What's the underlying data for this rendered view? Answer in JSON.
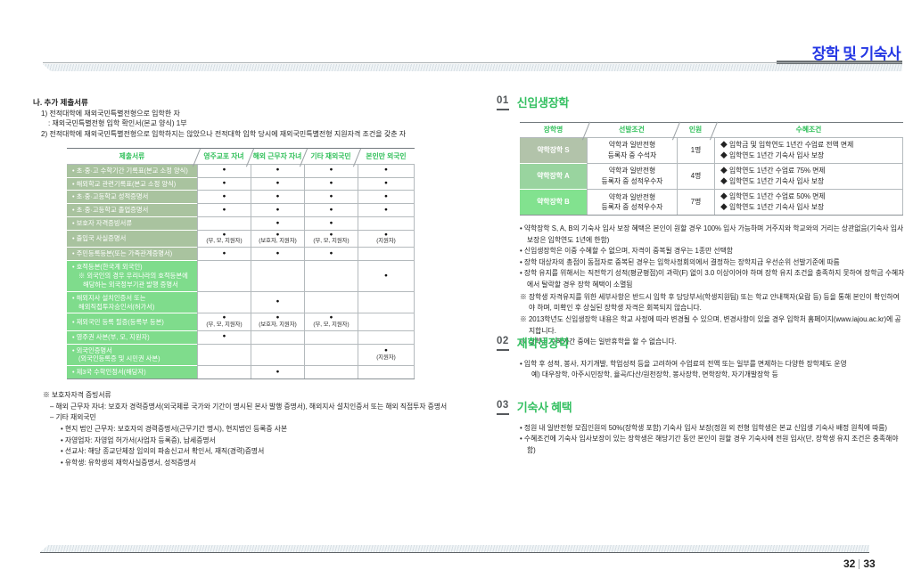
{
  "page": {
    "header_title": "장학 및 기숙사",
    "page_number_left": "32",
    "page_number_right": "33"
  },
  "left": {
    "heading": "나. 추가 제출서류",
    "line1": "1) 전적대학에 재외국민특별전형으로 입학한 자",
    "line1b": ": 재외국민특별전형 입학 확인서(본교 양식) 1부",
    "line2": "2) 전적대학에 재외국민특별전형으로 입학하지는 않았으나 전적대학 입학 당시에 재외국민특별전형 지원자격 조건을 갖춘 자",
    "table": {
      "headers": [
        "제출서류",
        "영주교포 자녀",
        "해외 근무자 자녀",
        "기타 재외국민",
        "본인만 외국인"
      ],
      "rows": [
        {
          "label": "• 초·중·고 수학기간 기록표(본교 소정 양식)",
          "cells": [
            "●",
            "●",
            "●",
            "●"
          ]
        },
        {
          "label": "• 해외학교 관련기록표(본교 소정 양식)",
          "cells": [
            "●",
            "●",
            "●",
            "●"
          ]
        },
        {
          "label": "• 초·중·고등학교 성적증명서",
          "cells": [
            "●",
            "●",
            "●",
            "●"
          ]
        },
        {
          "label": "• 초·중·고등학교 졸업증명서",
          "cells": [
            "●",
            "●",
            "●",
            "●"
          ]
        },
        {
          "label": "• 보호자 자격증빙서류",
          "cells": [
            "",
            "●",
            "●",
            ""
          ]
        },
        {
          "label": "• 출입국 사실증명서",
          "cells": [
            "●",
            "●",
            "●",
            "●"
          ],
          "subs": [
            "(부, 모, 지원자)",
            "(보호자, 지원자)",
            "(부, 모, 지원자)",
            "(지원자)"
          ]
        },
        {
          "label": "• 주민등록등본(또는 가족관계증명서)",
          "cells": [
            "●",
            "●",
            "●",
            ""
          ]
        },
        {
          "label": "• 호적등본(한국계 외국인)",
          "label2": "※ 외국인의 경우 우리나라의 호적등본에",
          "label3": "해당하는 외국정부기관 발행 증명서",
          "cells": [
            "",
            "",
            "",
            "●"
          ]
        },
        {
          "label": "• 해외지사 설치인증서 또는",
          "label2": "해외직접투자승인서(허가서)",
          "cells": [
            "",
            "●",
            "",
            ""
          ]
        },
        {
          "label": "• 재외국민 등록 필증(등록부 등본)",
          "cells": [
            "●",
            "●",
            "●",
            ""
          ],
          "subs": [
            "(부, 모, 지원자)",
            "(보호자, 지원자)",
            "(부, 모, 지원자)",
            ""
          ]
        },
        {
          "label": "• 영주권 사본(부, 모, 지원자)",
          "cells": [
            "●",
            "",
            "",
            ""
          ]
        },
        {
          "label": "• 외국인증명서",
          "label2": "(외국인등록증 및 시민권 사본)",
          "cells": [
            "",
            "",
            "",
            "●"
          ],
          "subs": [
            "",
            "",
            "",
            "(지원자)"
          ]
        },
        {
          "label": "• 제3국 수학인정서(해당자)",
          "cells": [
            "",
            "●",
            "",
            ""
          ]
        }
      ]
    },
    "notes": {
      "title": "※ 보호자자격 증빙서류",
      "item1": "– 해외 근무자 자녀: 보호자 경력증명서(외국체류 국가와 기간이 명시된 본사 발행 증명서), 해외지사 설치인증서 또는 해외 직접투자 증명서",
      "item2": "– 기타 재외국민",
      "sub_items": [
        "• 현지 법인 근무자: 보호자의 경력증명서(근무기간 명시), 현지법인 등록증 사본",
        "• 자영업자: 자영업 허가서(사업자 등록증), 납세증명서",
        "• 선교사: 해당 종교단체장 임의의 파송신고서 확인서, 재직(경력)증명서",
        "• 유학생: 유학생의 재학사실증명서, 성적증명서"
      ]
    }
  },
  "sections": {
    "s1": {
      "num": "01",
      "title": "신입생장학",
      "table": {
        "headers": [
          "장학명",
          "선발조건",
          "인원",
          "수혜조건"
        ],
        "rows": [
          {
            "name": "약학장학 S",
            "cond1": "약학과 일반전형",
            "cond2": "등록자 중 수석자",
            "count": "1명",
            "benefit1": "◆ 입학금 및 입학연도 1년간 수업료 전액 면제",
            "benefit2": "◆ 입학연도 1년간 기숙사 입사 보장"
          },
          {
            "name": "약학장학 A",
            "cond1": "약학과 일반전형",
            "cond2": "등록자 중 성적우수자",
            "count": "4명",
            "benefit1": "◆ 입학연도 1년간 수업료 75% 면제",
            "benefit2": "◆ 입학연도 1년간 기숙사 입사 보장"
          },
          {
            "name": "약학장학 B",
            "cond1": "약학과 일반전형",
            "cond2": "등록자 중 성적우수자",
            "count": "7명",
            "benefit1": "◆ 입학연도 1년간 수업료 50% 면제",
            "benefit2": "◆ 입학연도 1년간 기숙사 입사 보장"
          }
        ]
      },
      "bullets": [
        "• 약학장학 S, A, B의 기숙사 입사 보장 혜택은 본인이 원할 경우 100% 입사 가능하며 거주지와 학교와의 거리는 상관없음(기숙사 입사 보장은 입학연도 1년에 한함)",
        "• 신입생장학은 이중 수혜할 수 없으며, 자격이 중복될 경우는 1종만 선택함",
        "• 장학 대상자의 총점이 동점자로 중복된 경우는 입학사정회의에서 결정하는 장학지급 우선순위 선발기준에 따름",
        "• 장학 유지를 위해서는 직전학기 성적(평균평점)이 과락(F) 없이 3.0 이상이어야 하며 장학 유지 조건을 충족하지 못하여 장학금 수혜자에서 탈락할 경우 장학 혜택이 소멸됨"
      ],
      "remarks": [
        "※ 장학생 자격유지를 위한 세부사항은 반드시 입학 후 담당부서(학생지원팀) 또는 학교 안내책자(요람 등) 등을 통해 본인이 확인하여야 하며, 미확인 후 상실된 장학생 자격은 회복되지 않습니다.",
        "※ 2013학년도 신입생장학 내용은 학교 사정에 따라 변경될 수 있으며, 변경사항이 있을 경우 입학처 홈페이지(www.iajou.ac.kr)에 공지합니다.",
        "※ 장학금 수혜기간 중에는 일반휴학을 할 수 없습니다."
      ]
    },
    "s2": {
      "num": "02",
      "title": "재학생장학",
      "bullets": [
        "• 입학 후 성적, 봉사, 자기개발, 학업성적 등을 고려하여 수업료의 전액 또는 일부를 면제하는 다양한 장학제도 운영",
        "예) 대우장학, 아주시민장학, 율곡/다산/원천장학, 봉사장학, 면학장학, 자기개발장학 등"
      ]
    },
    "s3": {
      "num": "03",
      "title": "기숙사 혜택",
      "bullets": [
        "• 정원 내 일반전형 모집인원의 50%(장학생 포함) 기숙사 입사 보장(정원 외 전형 입학생은 본교 신입생 기숙사 배정 원칙에 따름)",
        "• 수혜조건에 기숙사 입사보장이 있는 장학생은 해당기간 동안 본인이 원할 경우 기숙사에 전원 입사(단, 장학생 유지 조건은 충족해야 함)"
      ]
    }
  },
  "colors": {
    "accent_blue": "#2336e4",
    "accent_green": "#35c062",
    "cell_sage": "#a9c39f",
    "cell_bright": "#7fdc8c"
  }
}
